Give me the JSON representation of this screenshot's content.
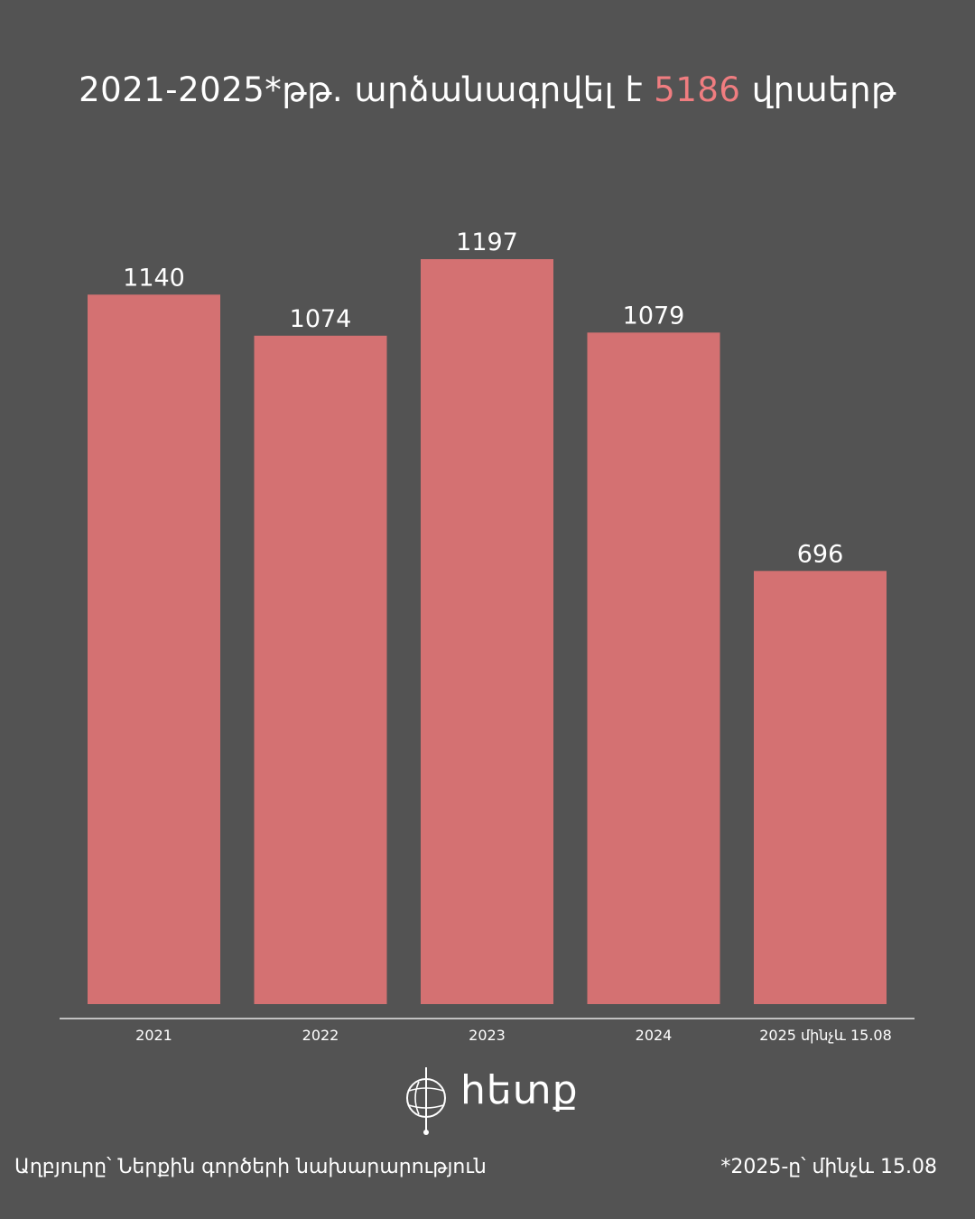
{
  "header": {
    "title_before": "2021-2025*թթ. արձանագրվել է ",
    "title_highlight": "5186",
    "title_after": " վրաերթ"
  },
  "colors": {
    "background": "#535353",
    "bar": "#d47172",
    "highlight": "#f07d80",
    "text": "#ffffff"
  },
  "chart_data": {
    "type": "bar",
    "categories": [
      "2021",
      "2022",
      "2023",
      "2024",
      "2025 մինչև 15.08"
    ],
    "values": [
      1140,
      1074,
      1197,
      1079,
      696
    ],
    "data_labels": [
      "1140",
      "1074",
      "1197",
      "1079",
      "696"
    ],
    "title": "2021-2025*թթ. արձանագրվել է 5186 վրաերթ",
    "xlabel": "",
    "ylabel": "",
    "ylim": [
      0,
      1200
    ],
    "grid": false,
    "legend": "none"
  },
  "logo": {
    "word": "հետք",
    "icon": "globe-pin-icon"
  },
  "footer": {
    "source": "Աղբյուրը՝ Ներքին գործերի նախարարություն",
    "note": "*2025-ը՝ մինչև 15.08"
  }
}
